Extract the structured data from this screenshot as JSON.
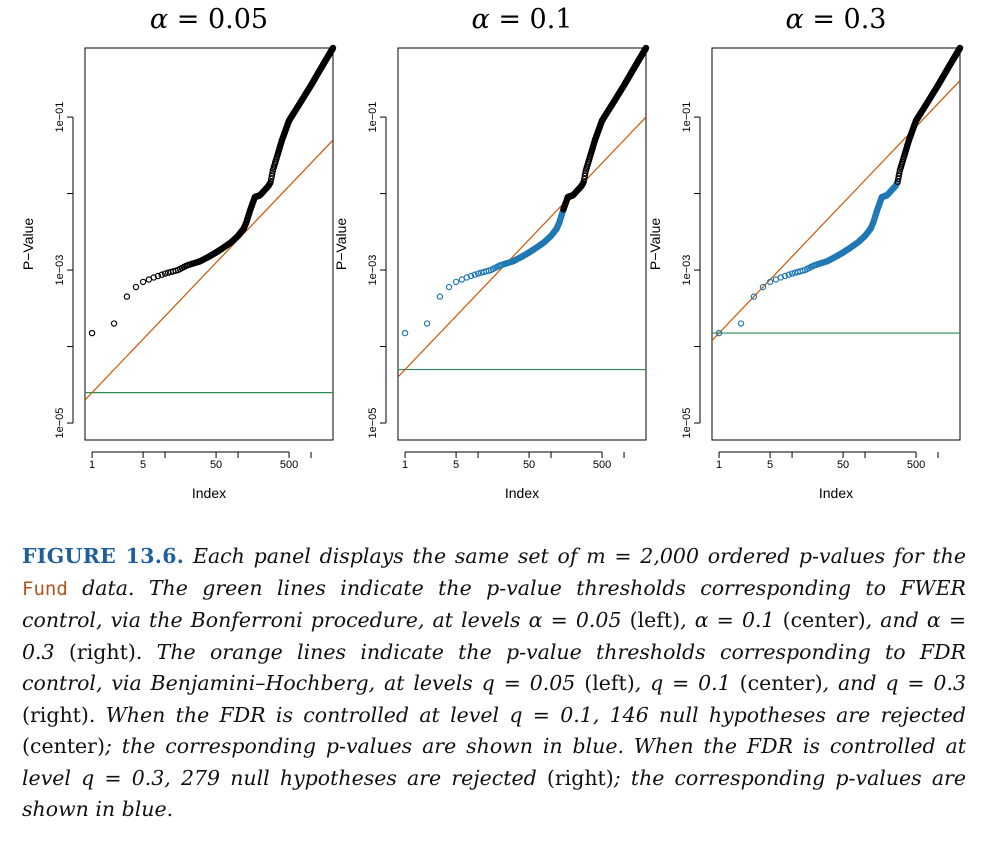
{
  "colors": {
    "bonferroni": "#2e8b57",
    "bh": "#cc5500",
    "rejected": "#1f78b4",
    "points": "#000000",
    "caption_lead": "#1f5f9e",
    "caption_code": "#b5541c"
  },
  "chart_data": [
    {
      "type": "scatter",
      "title_greek": "α",
      "title_value": " = 0.05",
      "alpha": 0.05,
      "m": 2000,
      "rejected": 0,
      "xlabel": "Index",
      "ylabel": "P−Value",
      "x_scale": "log",
      "y_scale": "log",
      "x_ticks": [
        1,
        5,
        50,
        500
      ],
      "x_tick_labels": [
        "1",
        "5",
        "50",
        "500"
      ],
      "y_ticks": [
        0.1,
        0.001,
        1e-05
      ],
      "y_tick_labels": [
        "1e−01",
        "1e−03",
        "1e−05"
      ],
      "xlim": [
        0.8,
        2000
      ],
      "ylim": [
        6e-06,
        0.8
      ],
      "bonferroni_threshold": 2.5e-05,
      "bh_line": "q * i / m"
    },
    {
      "type": "scatter",
      "title_greek": "α",
      "title_value": " = 0.1",
      "alpha": 0.1,
      "m": 2000,
      "rejected": 146,
      "xlabel": "Index",
      "ylabel": "P−Value",
      "x_scale": "log",
      "y_scale": "log",
      "x_ticks": [
        1,
        5,
        50,
        500
      ],
      "x_tick_labels": [
        "1",
        "5",
        "50",
        "500"
      ],
      "y_ticks": [
        0.1,
        0.001,
        1e-05
      ],
      "y_tick_labels": [
        "1e−01",
        "1e−03",
        "1e−05"
      ],
      "xlim": [
        0.8,
        2000
      ],
      "ylim": [
        6e-06,
        0.8
      ],
      "bonferroni_threshold": 5e-05,
      "bh_line": "q * i / m"
    },
    {
      "type": "scatter",
      "title_greek": "α",
      "title_value": " = 0.3",
      "alpha": 0.3,
      "m": 2000,
      "rejected": 279,
      "xlabel": "Index",
      "ylabel": "P−Value",
      "x_scale": "log",
      "y_scale": "log",
      "x_ticks": [
        1,
        5,
        50,
        500
      ],
      "x_tick_labels": [
        "1",
        "5",
        "50",
        "500"
      ],
      "y_ticks": [
        0.1,
        0.001,
        1e-05
      ],
      "y_tick_labels": [
        "1e−01",
        "1e−03",
        "1e−05"
      ],
      "xlim": [
        0.8,
        2000
      ],
      "ylim": [
        6e-06,
        0.8
      ],
      "bonferroni_threshold": 0.00015,
      "bh_line": "q * i / m"
    }
  ],
  "pvalue_curve": {
    "index": [
      1,
      2,
      3,
      4,
      5,
      7,
      10,
      15,
      20,
      30,
      40,
      50,
      60,
      80,
      100,
      120,
      130,
      146,
      170,
      200,
      230,
      260,
      279,
      300,
      400,
      500,
      700,
      1000,
      1300,
      1600,
      2000
    ],
    "pvalue": [
      0.00015,
      0.0002,
      0.00045,
      0.0006,
      0.0007,
      0.0008,
      0.0009,
      0.001,
      0.00115,
      0.0013,
      0.0015,
      0.0017,
      0.0019,
      0.0023,
      0.0028,
      0.0035,
      0.0042,
      0.006,
      0.009,
      0.0095,
      0.011,
      0.0125,
      0.014,
      0.02,
      0.05,
      0.09,
      0.15,
      0.26,
      0.4,
      0.56,
      0.8
    ]
  },
  "caption": {
    "lead": "FIGURE 13.6.",
    "s1": " Each panel displays the same set of ",
    "m_expr": "m = 2,000",
    "s2": " ordered p-values for the ",
    "fund": "Fund",
    "s3": " data. The green lines indicate the p-value thresholds corresponding to FWER control, via the Bonferroni procedure, at levels ",
    "a1": "α = 0.05",
    "left1": " (left)",
    "s4": ", ",
    "a2": "α = 0.1",
    "center1": " (center)",
    "s5": ", and ",
    "a3": "α = 0.3",
    "right1": " (right)",
    "s6": ". The orange lines indicate the p-value thresholds corresponding to FDR control, via Benjamini–Hochberg, at levels ",
    "q1": "q = 0.05",
    "left2": " (left)",
    "s7": ", ",
    "q2": "q = 0.1",
    "center2": " (center)",
    "s8": ", and ",
    "q3": "q = 0.3",
    "right2": " (right)",
    "s9": ". When the FDR is controlled at level ",
    "q4": "q = 0.1",
    "s10": ", 146 null hypotheses are rejected",
    "center3": " (center)",
    "s11": "; the corresponding p-values are shown in blue. When the FDR is controlled at level ",
    "q5": "q = 0.3",
    "s12": ", 279 null hypotheses are rejected",
    "right3": " (right)",
    "s13": "; the corresponding p-values are shown in blue."
  }
}
